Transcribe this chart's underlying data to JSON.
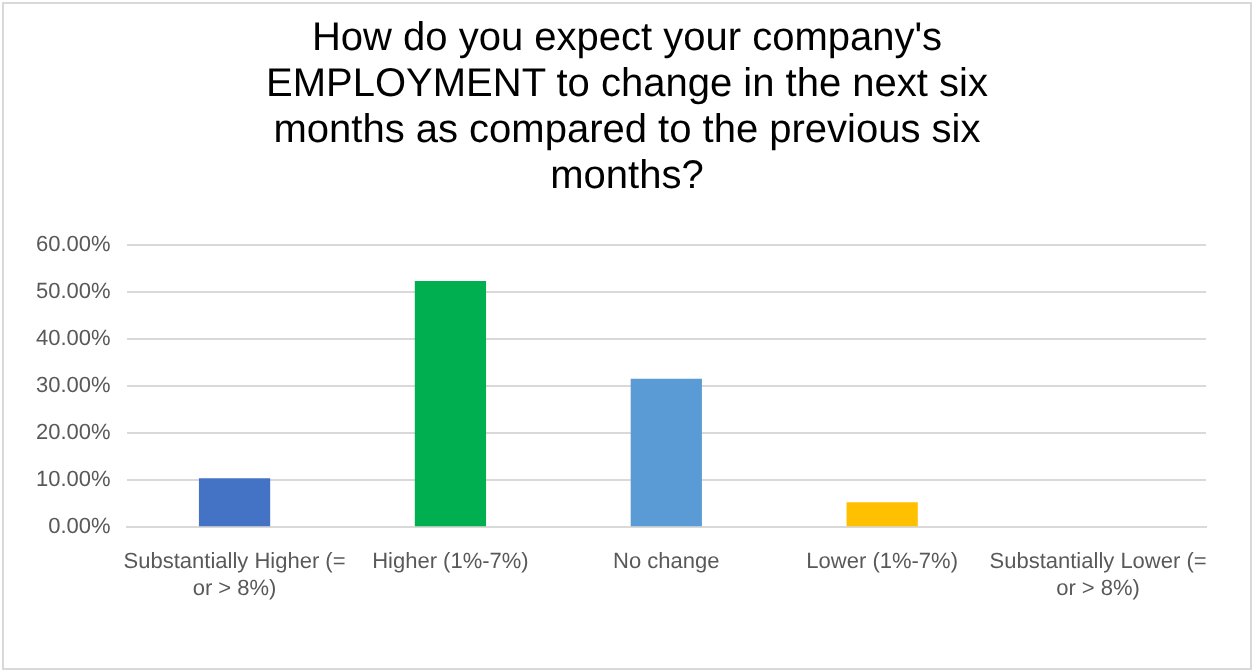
{
  "chart_data": {
    "type": "bar",
    "title": "How do you expect your company's EMPLOYMENT to change in the next six months as compared to the previous six months?",
    "categories": [
      "Substantially Higher (= or > 8%)",
      "Higher (1%-7%)",
      "No change",
      "Lower (1%-7%)",
      "Substantially Lower (= or > 8%)"
    ],
    "values": [
      10.4,
      52.4,
      31.6,
      5.3,
      0
    ],
    "colors": [
      "#4472c4",
      "#00b050",
      "#5b9bd5",
      "#ffc000",
      "#a5a5a5"
    ],
    "ylim": [
      0,
      60
    ],
    "yticks": [
      {
        "value": 0,
        "label": "0.00%"
      },
      {
        "value": 10,
        "label": "10.00%"
      },
      {
        "value": 20,
        "label": "20.00%"
      },
      {
        "value": 30,
        "label": "30.00%"
      },
      {
        "value": 40,
        "label": "40.00%"
      },
      {
        "value": 50,
        "label": "50.00%"
      },
      {
        "value": 60,
        "label": "60.00%"
      }
    ],
    "grid": "y",
    "legend": false
  }
}
